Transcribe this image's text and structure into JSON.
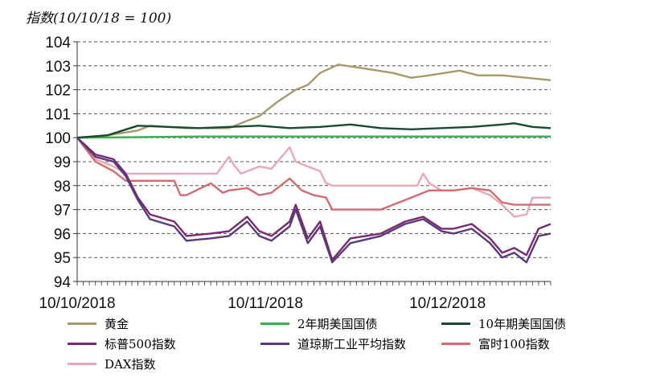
{
  "chart_data": {
    "type": "line",
    "title": "指数(10/10/18 = 100)",
    "xlabel": "",
    "ylabel": "",
    "ylim": [
      94,
      104
    ],
    "yticks": [
      "94",
      "95",
      "96",
      "97",
      "98",
      "99",
      "100",
      "101",
      "102",
      "103",
      "104"
    ],
    "xlim_days": [
      0,
      78
    ],
    "xticks": [
      {
        "day": 0,
        "label": "10/10/2018"
      },
      {
        "day": 31,
        "label": "10/11/2018"
      },
      {
        "day": 61,
        "label": "10/12/2018"
      }
    ],
    "grid": "horizontal-dashed",
    "legend_position": "bottom",
    "series": [
      {
        "name": "黄金",
        "color": "#a89a6a",
        "x": [
          0,
          5,
          10,
          12,
          18,
          25,
          28,
          30,
          33,
          36,
          38,
          40,
          43,
          47,
          52,
          55,
          58,
          63,
          66,
          70,
          74,
          78
        ],
        "y": [
          100,
          100.1,
          100.3,
          100.5,
          100.4,
          100.4,
          100.7,
          100.9,
          101.5,
          102,
          102.2,
          102.7,
          103.05,
          102.9,
          102.7,
          102.5,
          102.6,
          102.8,
          102.6,
          102.6,
          102.5,
          102.4
        ]
      },
      {
        "name": "2年期美国国债",
        "color": "#3cb04c",
        "x": [
          0,
          20,
          40,
          60,
          78
        ],
        "y": [
          100,
          100.05,
          100.05,
          100.05,
          100.05
        ]
      },
      {
        "name": "10年期美国国债",
        "color": "#1a4a32",
        "x": [
          0,
          5,
          10,
          15,
          20,
          25,
          30,
          35,
          40,
          45,
          50,
          55,
          60,
          65,
          70,
          72,
          75,
          78
        ],
        "y": [
          100,
          100.1,
          100.5,
          100.45,
          100.4,
          100.45,
          100.5,
          100.4,
          100.45,
          100.55,
          100.4,
          100.35,
          100.4,
          100.45,
          100.55,
          100.6,
          100.45,
          100.4
        ]
      },
      {
        "name": "标普500指数",
        "color": "#7a2a70",
        "x": [
          0,
          3,
          6,
          8,
          10,
          12,
          16,
          18,
          22,
          25,
          28,
          30,
          32,
          35,
          36,
          38,
          40,
          42,
          45,
          50,
          54,
          57,
          60,
          62,
          65,
          68,
          70,
          72,
          74,
          76,
          78
        ],
        "y": [
          100,
          99.3,
          99.1,
          98.5,
          97.5,
          96.8,
          96.5,
          95.9,
          96,
          96.1,
          96.7,
          96.1,
          95.9,
          96.5,
          97.2,
          95.8,
          96.5,
          94.9,
          95.8,
          96,
          96.5,
          96.7,
          96.2,
          96.2,
          96.4,
          95.8,
          95.2,
          95.4,
          95.1,
          96.2,
          96.4
        ]
      },
      {
        "name": "道琼斯工业平均指数",
        "color": "#5a3a7a",
        "x": [
          0,
          3,
          6,
          8,
          10,
          12,
          16,
          18,
          22,
          25,
          28,
          30,
          32,
          35,
          36,
          38,
          40,
          42,
          45,
          50,
          54,
          57,
          60,
          62,
          65,
          68,
          70,
          72,
          74,
          76,
          78
        ],
        "y": [
          100,
          99.2,
          99,
          98.4,
          97.4,
          96.6,
          96.3,
          95.7,
          95.8,
          95.9,
          96.5,
          95.9,
          95.7,
          96.3,
          97,
          95.6,
          96.3,
          94.8,
          95.6,
          95.9,
          96.4,
          96.6,
          96.1,
          96,
          96.2,
          95.6,
          95,
          95.2,
          94.8,
          95.9,
          96
        ]
      },
      {
        "name": "富时100指数",
        "color": "#d46a72",
        "x": [
          0,
          3,
          6,
          8,
          12,
          16,
          17,
          18,
          22,
          24,
          25,
          28,
          30,
          32,
          35,
          37,
          39,
          41,
          42,
          45,
          50,
          54,
          56,
          58,
          62,
          65,
          68,
          70,
          72,
          73,
          78
        ],
        "y": [
          100,
          99,
          98.6,
          98.2,
          98.2,
          98.2,
          97.6,
          97.6,
          98.1,
          97.7,
          97.8,
          97.9,
          97.6,
          97.7,
          98.3,
          97.8,
          97.6,
          97.5,
          97,
          97,
          97,
          97.4,
          97.6,
          97.8,
          97.8,
          97.9,
          97.8,
          97.3,
          97.2,
          97.2,
          97.2
        ]
      },
      {
        "name": "DAX指数",
        "color": "#eaa8b4",
        "x": [
          0,
          3,
          6,
          8,
          12,
          20,
          23,
          25,
          26,
          27,
          30,
          32,
          34,
          35,
          36,
          38,
          40,
          41,
          42,
          45,
          50,
          56,
          57,
          58,
          60,
          62,
          65,
          68,
          70,
          72,
          74,
          75,
          78
        ],
        "y": [
          100,
          99.1,
          98.8,
          98.5,
          98.5,
          98.5,
          98.5,
          99.2,
          98.8,
          98.5,
          98.8,
          98.7,
          99.3,
          99.6,
          99,
          98.8,
          98.6,
          98.1,
          98,
          98,
          98,
          98,
          98.5,
          98.1,
          97.8,
          97.8,
          97.9,
          97.6,
          97.2,
          96.7,
          96.8,
          97.5,
          97.5
        ]
      }
    ]
  }
}
